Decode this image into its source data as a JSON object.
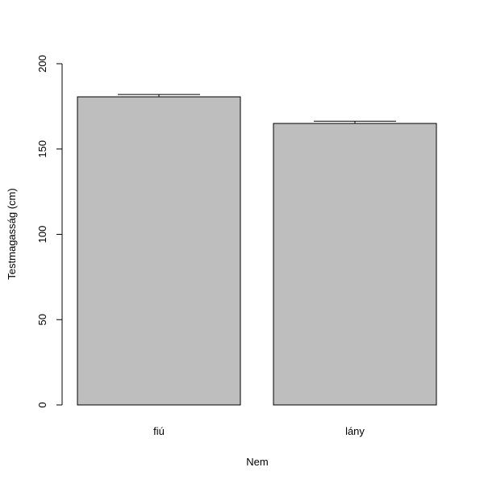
{
  "chart_data": {
    "type": "bar",
    "categories": [
      "fiú",
      "lány"
    ],
    "values": [
      180.6,
      165.0
    ],
    "error_upper": [
      182.0,
      166.3
    ],
    "xlabel": "Nem",
    "ylabel": "Testmagasság (cm)",
    "ylim": [
      0,
      200
    ],
    "yticks": [
      "0",
      "50",
      "100",
      "150",
      "200"
    ],
    "grid": false,
    "bar_color": "#bebebe"
  }
}
